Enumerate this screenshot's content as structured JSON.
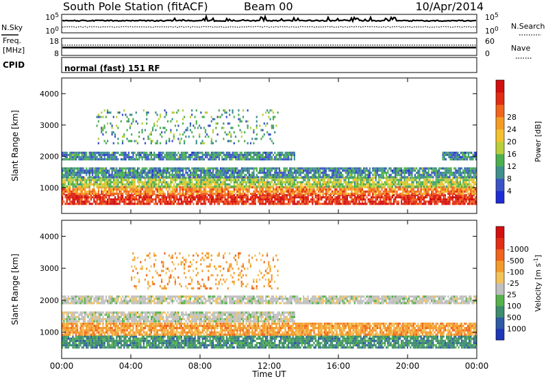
{
  "header": {
    "title": "South Pole Station (fitACF)",
    "beam": "Beam 00",
    "date": "10/Apr/2014"
  },
  "nsky_panel": {
    "left_label": "N.Sky",
    "right_label": "N.Search",
    "left_ticks": [
      "10^5",
      "10^0"
    ],
    "right_ticks": [
      "10^5",
      "10^0"
    ]
  },
  "freq_panel": {
    "left_label_line1": "Freq.",
    "left_label_line2": "[MHz]",
    "right_label": "Nave",
    "left_ticks": [
      "18",
      "8"
    ],
    "right_ticks": [
      "60",
      "0"
    ]
  },
  "cpid": {
    "label": "CPID",
    "value": "normal (fast) 151 RF"
  },
  "chart_data": [
    {
      "type": "heatmap",
      "title": "",
      "xlabel": "",
      "ylabel": "Slant Range [km]",
      "xlim": [
        0,
        24
      ],
      "ylim": [
        180,
        4500
      ],
      "y_ticks": [
        1000,
        2000,
        3000,
        4000
      ],
      "colorbar": {
        "label": "Power [dB]",
        "ticks": [
          "4",
          "8",
          "12",
          "16",
          "20",
          "24",
          "28"
        ],
        "colors": [
          "#1f2bd6",
          "#3a54c8",
          "#3f8f8f",
          "#4cb050",
          "#b9cf3a",
          "#f3c12d",
          "#f59b23",
          "#f2641c",
          "#e12b13",
          "#d30e0e"
        ]
      },
      "bands": [
        {
          "y_from": 500,
          "y_to": 800,
          "x_from": 0,
          "x_to": 24,
          "value": 28
        },
        {
          "y_from": 800,
          "y_to": 1050,
          "x_from": 0,
          "x_to": 24,
          "value": 22
        },
        {
          "y_from": 1050,
          "y_to": 1350,
          "x_from": 0,
          "x_to": 24,
          "value": 14
        },
        {
          "y_from": 1350,
          "y_to": 1650,
          "x_from": 0,
          "x_to": 24,
          "value": 8
        },
        {
          "y_from": 1900,
          "y_to": 2150,
          "x_from": 0,
          "x_to": 13.5,
          "value": 8
        },
        {
          "y_from": 1900,
          "y_to": 2150,
          "x_from": 22,
          "x_to": 24,
          "value": 8
        },
        {
          "y_from": 2400,
          "y_to": 3500,
          "x_from": 2,
          "x_to": 12.5,
          "value": 10
        }
      ]
    },
    {
      "type": "heatmap",
      "title": "",
      "xlabel": "Time UT",
      "ylabel": "Slant Range [km]",
      "xlim": [
        0,
        24
      ],
      "ylim": [
        180,
        4500
      ],
      "y_ticks": [
        1000,
        2000,
        3000,
        4000
      ],
      "x_ticks": [
        "00:00",
        "04:00",
        "08:00",
        "12:00",
        "16:00",
        "20:00",
        "00:00"
      ],
      "colorbar": {
        "label": "Velocity [m s^-1]",
        "ticks": [
          "1000",
          "500",
          "100",
          "25",
          "-25",
          "-100",
          "-500",
          "-1000"
        ],
        "colors": [
          "#1d37b8",
          "#2e5aa6",
          "#3d8d6e",
          "#55b24c",
          "#c0c0c0",
          "#f2c35a",
          "#f49a2a",
          "#f0641b",
          "#e32d14",
          "#d40f0f"
        ]
      },
      "bands": [
        {
          "y_from": 500,
          "y_to": 900,
          "x_from": 0,
          "x_to": 24,
          "value": 100
        },
        {
          "y_from": 900,
          "y_to": 1300,
          "x_from": 0,
          "x_to": 24,
          "value": -100
        },
        {
          "y_from": 1350,
          "y_to": 1650,
          "x_from": 0,
          "x_to": 13.5,
          "value": 0
        },
        {
          "y_from": 1900,
          "y_to": 2150,
          "x_from": 0,
          "x_to": 24,
          "value": 0
        },
        {
          "y_from": 2400,
          "y_to": 3500,
          "x_from": 4,
          "x_to": 12.5,
          "value": -100
        }
      ]
    }
  ]
}
